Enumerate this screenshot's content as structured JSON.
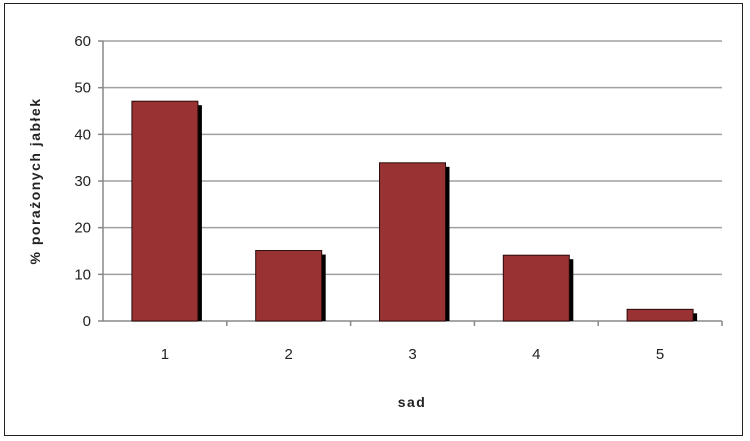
{
  "chart_data": {
    "type": "bar",
    "title": "",
    "xlabel": "sad",
    "ylabel": "% porażonych jabłek",
    "categories": [
      "1",
      "2",
      "3",
      "4",
      "5"
    ],
    "values": [
      47.1,
      15.1,
      33.9,
      14.1,
      2.5
    ],
    "ylim": [
      0,
      60
    ],
    "yticks": [
      0,
      10,
      20,
      30,
      40,
      50,
      60
    ],
    "grid": true,
    "legend": "none",
    "colors": {
      "bar": "#993333",
      "shadow": "#000000",
      "grid": "#a0a0a0"
    }
  }
}
